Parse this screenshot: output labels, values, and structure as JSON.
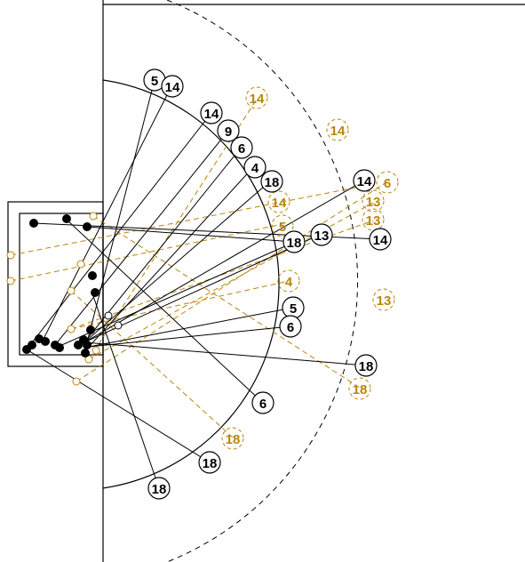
{
  "colors": {
    "black": "#000000",
    "gold": "#b8860b",
    "background": "#ffffff"
  },
  "black_labels": [
    "5",
    "14",
    "14",
    "9",
    "6",
    "4",
    "18",
    "14",
    "18",
    "13",
    "14",
    "5",
    "6",
    "18",
    "6",
    "18",
    "18"
  ],
  "gold_labels": [
    "14",
    "14",
    "14",
    "6",
    "13",
    "13",
    "5",
    "4",
    "13",
    "18",
    "18"
  ]
}
